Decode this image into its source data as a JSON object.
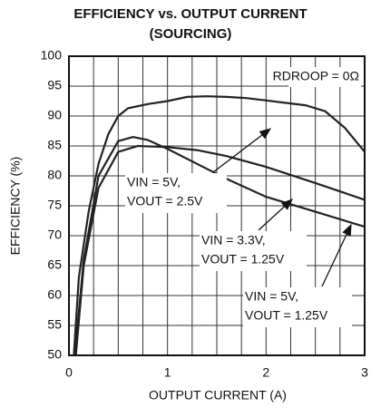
{
  "chart_data": {
    "type": "line",
    "title": [
      "EFFICIENCY vs. OUTPUT CURRENT",
      "(SOURCING)"
    ],
    "xlabel": "OUTPUT CURRENT (A)",
    "ylabel": "EFFICIENCY (%)",
    "xlim": [
      0,
      3
    ],
    "ylim": [
      50,
      100
    ],
    "xticks": [
      0,
      1,
      2,
      3
    ],
    "yticks": [
      50,
      55,
      60,
      65,
      70,
      75,
      80,
      85,
      90,
      95,
      100
    ],
    "x_minor_grid": [
      0.25,
      0.5,
      0.75,
      1.25,
      1.5,
      1.75,
      2.25,
      2.5,
      2.75
    ],
    "grid": true,
    "note": "RDROOP = 0Ω",
    "series": [
      {
        "label": [
          "VIN = 5V,",
          "VOUT = 2.5V"
        ],
        "color": "#222222",
        "x": [
          0.05,
          0.1,
          0.2,
          0.3,
          0.4,
          0.5,
          0.6,
          0.8,
          1,
          1.2,
          1.4,
          1.6,
          1.8,
          2,
          2.2,
          2.4,
          2.6,
          2.8,
          3
        ],
        "values": [
          50,
          63,
          74,
          82,
          87,
          90,
          91.3,
          92,
          92.5,
          93.2,
          93.3,
          93.2,
          93,
          92.6,
          92.2,
          91.8,
          90.8,
          88,
          84
        ]
      },
      {
        "label": [
          "VIN = 3.3V,",
          "VOUT = 1.25V"
        ],
        "color": "#222222",
        "x": [
          0.07,
          0.15,
          0.3,
          0.5,
          0.7,
          1,
          1.3,
          1.6,
          2,
          2.5,
          3
        ],
        "values": [
          50,
          65,
          78,
          84,
          85,
          84.8,
          84.3,
          83.3,
          81.5,
          78.8,
          76
        ]
      },
      {
        "label": [
          "VIN = 5V,",
          "VOUT = 1.25V"
        ],
        "color": "#222222",
        "x": [
          0.06,
          0.15,
          0.3,
          0.5,
          0.65,
          0.8,
          1,
          1.3,
          1.6,
          2,
          2.5,
          3
        ],
        "values": [
          50,
          66,
          80,
          85.8,
          86.5,
          86,
          84.5,
          82,
          79.5,
          76.5,
          74,
          71.5
        ]
      }
    ]
  }
}
